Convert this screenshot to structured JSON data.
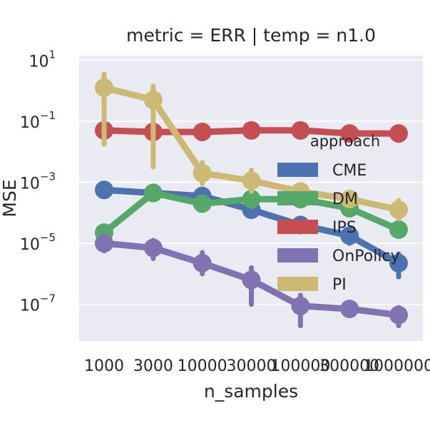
{
  "chart_data": {
    "type": "line",
    "title": "metric = ERR | temp = n1.0",
    "xlabel": "n_samples",
    "ylabel": "MSE",
    "yscale": "log",
    "ylim_exp": [
      -8.2,
      1.15
    ],
    "y_ticks": [
      {
        "base": "10",
        "exp": "1"
      },
      {
        "base": "10",
        "exp": "−1"
      },
      {
        "base": "10",
        "exp": "−3"
      },
      {
        "base": "10",
        "exp": "−5"
      },
      {
        "base": "10",
        "exp": "−7"
      }
    ],
    "categories": [
      "1000",
      "3000",
      "10000",
      "30000",
      "100000",
      "300000",
      "1000000"
    ],
    "legend": {
      "title": "approach",
      "position": "center-right"
    },
    "series": [
      {
        "name": "CME",
        "color": "#4c72b0",
        "log10": [
          -3.25,
          -3.35,
          -3.45,
          -3.9,
          -4.4,
          -4.75,
          -5.65
        ],
        "err": [
          [
            -3.2,
            -3.3
          ],
          [
            -3.3,
            -3.4
          ],
          [
            -3.3,
            -3.6
          ],
          [
            -3.7,
            -4.1
          ],
          [
            -4.2,
            -4.6
          ],
          [
            -4.55,
            -5.0
          ],
          [
            -5.35,
            -6.1
          ]
        ]
      },
      {
        "name": "DM",
        "color": "#55a868",
        "log10": [
          -4.65,
          -3.35,
          -3.7,
          -3.55,
          -3.55,
          -3.85,
          -4.55
        ],
        "err": [
          [
            -4.6,
            -4.7
          ],
          [
            -3.25,
            -3.45
          ],
          [
            -3.6,
            -3.8
          ],
          [
            -3.3,
            -3.8
          ],
          [
            -3.4,
            -3.7
          ],
          [
            -3.7,
            -4.0
          ],
          [
            -4.5,
            -4.6
          ]
        ]
      },
      {
        "name": "IPS",
        "color": "#c44e52",
        "log10": [
          -1.3,
          -1.35,
          -1.35,
          -1.3,
          -1.3,
          -1.4,
          -1.4
        ],
        "err": [
          [
            -1.2,
            -1.4
          ],
          [
            -1.3,
            -1.4
          ],
          [
            -1.3,
            -1.4
          ],
          [
            -1.25,
            -1.35
          ],
          [
            -1.25,
            -1.35
          ],
          [
            -1.35,
            -1.45
          ],
          [
            -1.35,
            -1.45
          ]
        ]
      },
      {
        "name": "OnPolicy",
        "color": "#8172b2",
        "log10": [
          -5.0,
          -5.15,
          -5.65,
          -6.2,
          -7.05,
          -7.15,
          -7.35
        ],
        "err": [
          [
            -4.8,
            -5.25
          ],
          [
            -4.9,
            -5.5
          ],
          [
            -5.3,
            -6.0
          ],
          [
            -5.8,
            -7.0
          ],
          [
            -6.7,
            -7.7
          ],
          [
            -7.0,
            -7.35
          ],
          [
            -7.1,
            -7.7
          ]
        ]
      },
      {
        "name": "PI",
        "color": "#ccb974",
        "log10": [
          0.1,
          -0.3,
          -2.7,
          -2.95,
          -3.3,
          -3.55,
          -3.9
        ],
        "err": [
          [
            0.55,
            -1.75
          ],
          [
            0.15,
            -2.5
          ],
          [
            -2.35,
            -3.05
          ],
          [
            -2.6,
            -3.3
          ],
          [
            -3.1,
            -3.55
          ],
          [
            -3.35,
            -3.75
          ],
          [
            -3.6,
            -4.2
          ]
        ]
      }
    ]
  }
}
